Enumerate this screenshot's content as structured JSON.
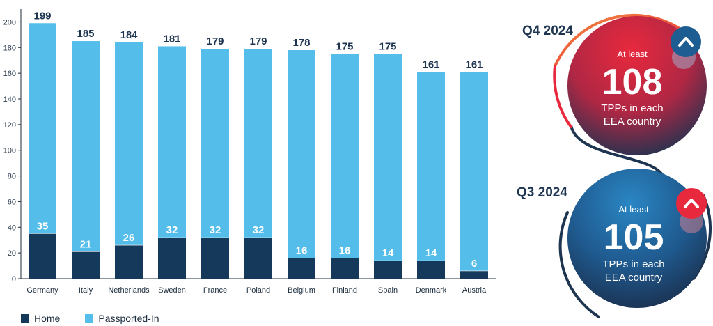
{
  "colors": {
    "home": "#15395b",
    "passported": "#54bde9",
    "axis": "#1d2b3a",
    "grid": "#ffffff",
    "q4_gradient_top": "#e8293d",
    "q4_gradient_bottom": "#1c3350",
    "q3_gradient_top": "#1f6faa",
    "q3_gradient_bottom": "#1a2f4d",
    "arrow_up": "#1d5d91",
    "arrow_alert": "#e8293d"
  },
  "chart_data": {
    "type": "bar",
    "stacked": true,
    "categories": [
      "Germany",
      "Italy",
      "Netherlands",
      "Sweden",
      "France",
      "Poland",
      "Belgium",
      "Finland",
      "Spain",
      "Denmark",
      "Austria"
    ],
    "series": [
      {
        "name": "Home",
        "values": [
          35,
          21,
          26,
          32,
          32,
          32,
          16,
          16,
          14,
          14,
          6
        ]
      },
      {
        "name": "Passported-In",
        "values": [
          164,
          164,
          158,
          149,
          147,
          147,
          162,
          159,
          161,
          147,
          155
        ]
      }
    ],
    "totals": [
      199,
      185,
      184,
      181,
      179,
      179,
      178,
      175,
      175,
      161,
      161
    ],
    "yticks": [
      0,
      20,
      40,
      60,
      80,
      100,
      120,
      140,
      160,
      180,
      200
    ],
    "ylim": [
      0,
      210
    ],
    "grid": false,
    "legend_position": "bottom-left"
  },
  "legend": {
    "home": "Home",
    "passported": "Passported-In"
  },
  "badges": {
    "q4": {
      "label": "Q4 2024",
      "at_least": "At least",
      "value": "108",
      "line1": "TPPs in each",
      "line2": "EEA country",
      "icon": "chevron-up-icon"
    },
    "q3": {
      "label": "Q3 2024",
      "at_least": "At least",
      "value": "105",
      "line1": "TPPs in each",
      "line2": "EEA country",
      "icon": "chevron-up-icon"
    }
  }
}
